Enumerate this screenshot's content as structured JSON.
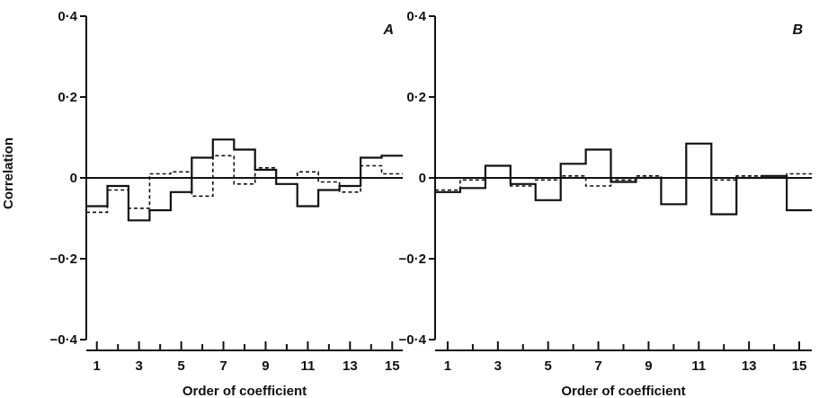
{
  "chart_data": [
    {
      "type": "step",
      "panel_label": "A",
      "xlabel": "Order of coefficient",
      "ylabel": "Correlation",
      "xlim": [
        0.5,
        15.5
      ],
      "ylim": [
        -0.4,
        0.4
      ],
      "x_ticks": [
        1,
        3,
        5,
        7,
        9,
        11,
        13,
        15
      ],
      "y_ticks": [
        {
          "value": 0.4,
          "label": "0·4"
        },
        {
          "value": 0.2,
          "label": "0·2"
        },
        {
          "value": 0,
          "label": "0"
        },
        {
          "value": -0.2,
          "label": "−0·2"
        },
        {
          "value": -0.4,
          "label": "−0·4"
        }
      ],
      "x": [
        1,
        2,
        3,
        4,
        5,
        6,
        7,
        8,
        9,
        10,
        11,
        12,
        13,
        14,
        15
      ],
      "series": [
        {
          "style": "solid",
          "values": [
            -0.07,
            -0.02,
            -0.105,
            -0.08,
            -0.035,
            0.05,
            0.095,
            0.07,
            0.02,
            -0.015,
            -0.07,
            -0.03,
            -0.02,
            0.05,
            0.055
          ]
        },
        {
          "style": "dashed",
          "values": [
            -0.085,
            -0.03,
            -0.075,
            0.01,
            0.015,
            -0.045,
            0.055,
            -0.015,
            0.025,
            0.0,
            0.015,
            -0.01,
            -0.035,
            0.03,
            0.01
          ]
        }
      ],
      "grid": false,
      "legend": "none"
    },
    {
      "type": "step",
      "panel_label": "B",
      "xlabel": "Order of coefficient",
      "ylabel": "",
      "xlim": [
        0.5,
        15.5
      ],
      "ylim": [
        -0.4,
        0.4
      ],
      "x_ticks": [
        1,
        3,
        5,
        7,
        9,
        11,
        13,
        15
      ],
      "y_ticks": [
        {
          "value": 0.4,
          "label": "0·4"
        },
        {
          "value": 0.2,
          "label": "0·2"
        },
        {
          "value": 0,
          "label": "0"
        },
        {
          "value": -0.2,
          "label": "−0·2"
        },
        {
          "value": -0.4,
          "label": "−0·4"
        }
      ],
      "x": [
        1,
        2,
        3,
        4,
        5,
        6,
        7,
        8,
        9,
        10,
        11,
        12,
        13,
        14,
        15
      ],
      "series": [
        {
          "style": "solid",
          "values": [
            -0.035,
            -0.025,
            0.03,
            -0.015,
            -0.055,
            0.035,
            0.07,
            -0.01,
            0.0,
            -0.065,
            0.085,
            -0.09,
            0.0,
            0.005,
            -0.08
          ]
        },
        {
          "style": "dashed",
          "values": [
            -0.03,
            -0.005,
            0.0,
            -0.02,
            -0.005,
            0.005,
            -0.02,
            -0.005,
            0.005,
            0.0,
            0.0,
            -0.005,
            0.005,
            0.005,
            0.01
          ]
        }
      ],
      "grid": false,
      "legend": "none"
    }
  ]
}
